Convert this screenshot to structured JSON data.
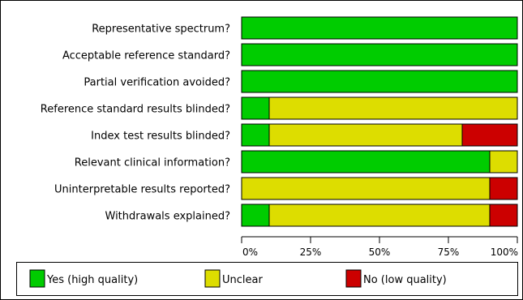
{
  "chart_data": {
    "type": "bar",
    "orientation": "horizontal",
    "stacked": true,
    "categories": [
      "Representative spectrum?",
      "Acceptable reference standard?",
      "Partial verification avoided?",
      "Reference standard results blinded?",
      "Index test results blinded?",
      "Relevant clinical information?",
      "Uninterpretable results reported?",
      "Withdrawals explained?"
    ],
    "series": [
      {
        "name": "Yes (high quality)",
        "color": "#00cc00",
        "values": [
          100,
          100,
          100,
          10,
          10,
          90,
          0,
          10
        ]
      },
      {
        "name": "Unclear",
        "color": "#dddd00",
        "values": [
          0,
          0,
          0,
          90,
          70,
          10,
          90,
          80
        ]
      },
      {
        "name": "No (low quality)",
        "color": "#cc0000",
        "values": [
          0,
          0,
          0,
          0,
          20,
          0,
          10,
          10
        ]
      }
    ],
    "xlim": [
      0,
      100
    ],
    "x_ticks": [
      "0%",
      "25%",
      "50%",
      "75%",
      "100%"
    ],
    "grid": false,
    "legend_position": "bottom"
  }
}
